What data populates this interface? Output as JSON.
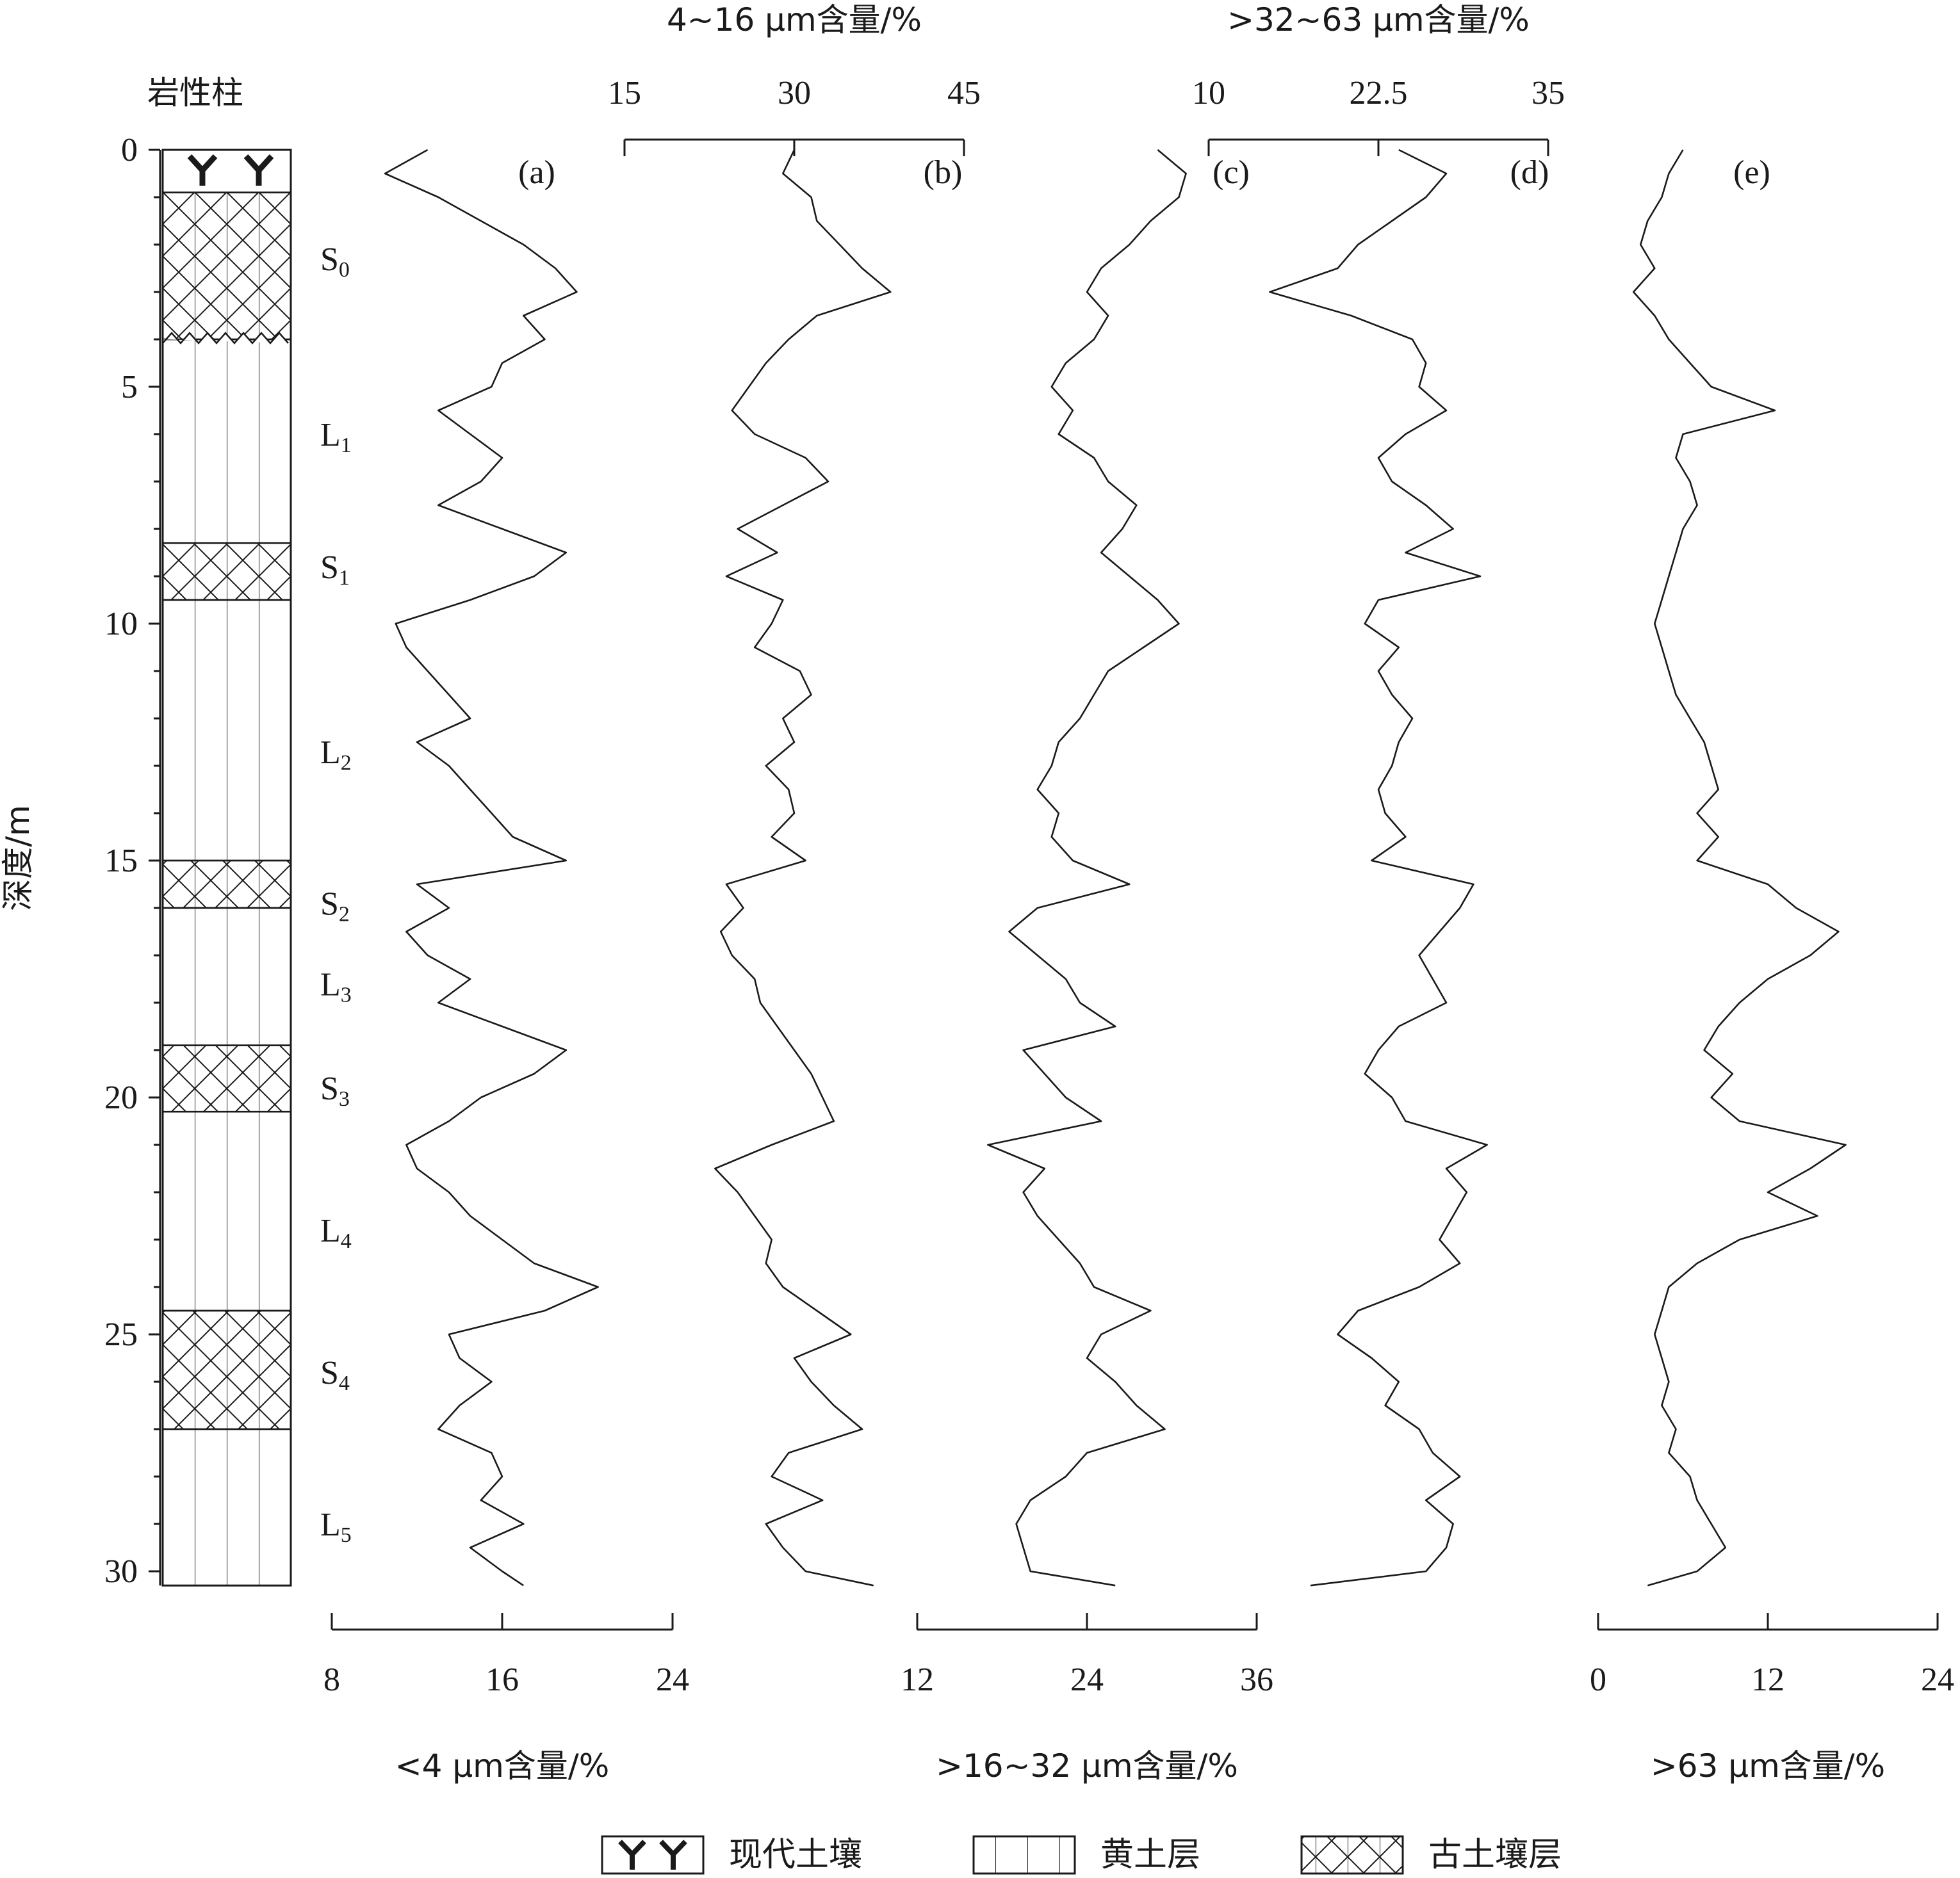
{
  "lithology": {
    "title": "岩性柱",
    "units": [
      {
        "label": "S",
        "sub": "0",
        "type": "soil_modern",
        "top": 0.0,
        "bottom": 0.9
      },
      {
        "label": "",
        "sub": "",
        "type": "paleosol",
        "top": 0.9,
        "bottom": 4.0
      },
      {
        "label": "L",
        "sub": "1",
        "type": "loess",
        "top": 4.0,
        "bottom": 8.3
      },
      {
        "label": "S",
        "sub": "1",
        "type": "paleosol",
        "top": 8.3,
        "bottom": 9.5
      },
      {
        "label": "L",
        "sub": "2",
        "type": "loess",
        "top": 9.5,
        "bottom": 15.0
      },
      {
        "label": "S",
        "sub": "2",
        "type": "paleosol",
        "top": 15.0,
        "bottom": 16.0
      },
      {
        "label": "L",
        "sub": "3",
        "type": "loess",
        "top": 16.0,
        "bottom": 18.9
      },
      {
        "label": "S",
        "sub": "3",
        "type": "paleosol",
        "top": 18.9,
        "bottom": 20.3
      },
      {
        "label": "L",
        "sub": "4",
        "type": "loess",
        "top": 20.3,
        "bottom": 24.5
      },
      {
        "label": "S",
        "sub": "4",
        "type": "paleosol",
        "top": 24.5,
        "bottom": 27.0
      },
      {
        "label": "L",
        "sub": "5",
        "type": "loess",
        "top": 27.0,
        "bottom": 30.3
      }
    ],
    "unit_label_depths": [
      2.3,
      6.0,
      8.8,
      12.7,
      15.9,
      17.6,
      19.8,
      22.8,
      25.8,
      29.0
    ]
  },
  "depth_axis": {
    "label": "深度/m",
    "range": [
      0,
      30.3
    ],
    "ticks": [
      0,
      5,
      10,
      15,
      20,
      25,
      30
    ],
    "tick_labels": [
      "0",
      "5",
      "10",
      "15",
      "20",
      "25",
      "30"
    ]
  },
  "legend": [
    {
      "type": "soil_modern",
      "label": "现代土壤"
    },
    {
      "type": "loess",
      "label": "黄土层"
    },
    {
      "type": "paleosol",
      "label": "古土壤层"
    }
  ],
  "chart_data": {
    "type": "line",
    "y_variable": "depth",
    "panels": [
      {
        "id": "a",
        "panel_label": "(a)",
        "axis_label": "<4 μm含量/%",
        "axis_position": "bottom",
        "xlim": [
          8,
          24
        ],
        "ticks": [
          8,
          16,
          24
        ],
        "tick_labels": [
          "8",
          "16",
          "24"
        ],
        "depth": [
          0.0,
          0.5,
          1.0,
          1.5,
          2.0,
          2.5,
          3.0,
          3.5,
          4.0,
          4.5,
          5.0,
          5.5,
          6.0,
          6.5,
          7.0,
          7.5,
          8.0,
          8.5,
          9.0,
          9.5,
          10.0,
          10.5,
          11.0,
          11.5,
          12.0,
          12.5,
          13.0,
          13.5,
          14.0,
          14.5,
          15.0,
          15.5,
          16.0,
          16.5,
          17.0,
          17.5,
          18.0,
          18.5,
          19.0,
          19.5,
          20.0,
          20.5,
          21.0,
          21.5,
          22.0,
          22.5,
          23.0,
          23.5,
          24.0,
          24.5,
          25.0,
          25.5,
          26.0,
          26.5,
          27.0,
          27.5,
          28.0,
          28.5,
          29.0,
          29.5,
          30.0,
          30.3
        ],
        "values": [
          12.5,
          10.5,
          13.0,
          15.0,
          17.0,
          18.5,
          19.5,
          17.0,
          18.0,
          16.0,
          15.5,
          13.0,
          14.5,
          16.0,
          15.0,
          13.0,
          16.0,
          19.0,
          17.5,
          14.5,
          11.0,
          11.5,
          12.5,
          13.5,
          14.5,
          12.0,
          13.5,
          14.5,
          15.5,
          16.5,
          19.0,
          12.0,
          13.5,
          11.5,
          12.5,
          14.5,
          13.0,
          16.0,
          19.0,
          17.5,
          15.0,
          13.5,
          11.5,
          12.0,
          13.5,
          14.5,
          16.0,
          17.5,
          20.5,
          18.0,
          13.5,
          14.0,
          15.5,
          14.0,
          13.0,
          15.5,
          16.0,
          15.0,
          17.0,
          14.5,
          16.0,
          17.0
        ]
      },
      {
        "id": "b",
        "panel_label": "(b)",
        "axis_label": "4~16 μm含量/%",
        "axis_position": "top",
        "xlim": [
          15,
          45
        ],
        "ticks": [
          15,
          30,
          45
        ],
        "tick_labels": [
          "15",
          "30",
          "45"
        ],
        "depth": [
          0.0,
          0.5,
          1.0,
          1.5,
          2.0,
          2.5,
          3.0,
          3.5,
          4.0,
          4.5,
          5.0,
          5.5,
          6.0,
          6.5,
          7.0,
          7.5,
          8.0,
          8.5,
          9.0,
          9.5,
          10.0,
          10.5,
          11.0,
          11.5,
          12.0,
          12.5,
          13.0,
          13.5,
          14.0,
          14.5,
          15.0,
          15.5,
          16.0,
          16.5,
          17.0,
          17.5,
          18.0,
          18.5,
          19.0,
          19.5,
          20.0,
          20.5,
          21.0,
          21.5,
          22.0,
          22.5,
          23.0,
          23.5,
          24.0,
          24.5,
          25.0,
          25.5,
          26.0,
          26.5,
          27.0,
          27.5,
          28.0,
          28.5,
          29.0,
          29.5,
          30.0,
          30.3
        ],
        "values": [
          30.0,
          29.0,
          31.5,
          32.0,
          34.0,
          36.0,
          38.5,
          32.0,
          29.5,
          27.5,
          26.0,
          24.5,
          26.5,
          31.0,
          33.0,
          29.0,
          25.0,
          28.5,
          24.0,
          29.0,
          28.0,
          26.5,
          30.5,
          31.5,
          29.0,
          30.0,
          27.5,
          29.5,
          30.0,
          28.0,
          31.0,
          24.0,
          25.5,
          23.5,
          24.5,
          26.5,
          27.0,
          28.5,
          30.0,
          31.5,
          32.5,
          33.5,
          28.0,
          23.0,
          25.0,
          26.5,
          28.0,
          27.5,
          29.0,
          32.0,
          35.0,
          30.0,
          31.5,
          33.5,
          36.0,
          29.5,
          28.0,
          32.5,
          27.5,
          29.0,
          31.0,
          37.0
        ]
      },
      {
        "id": "c",
        "panel_label": "(c)",
        "axis_label": ">16~32 μm含量/%",
        "axis_position": "bottom",
        "xlim": [
          12,
          36
        ],
        "ticks": [
          12,
          24,
          36
        ],
        "tick_labels": [
          "12",
          "24",
          "36"
        ],
        "depth": [
          0.0,
          0.5,
          1.0,
          1.5,
          2.0,
          2.5,
          3.0,
          3.5,
          4.0,
          4.5,
          5.0,
          5.5,
          6.0,
          6.5,
          7.0,
          7.5,
          8.0,
          8.5,
          9.0,
          9.5,
          10.0,
          10.5,
          11.0,
          11.5,
          12.0,
          12.5,
          13.0,
          13.5,
          14.0,
          14.5,
          15.0,
          15.5,
          16.0,
          16.5,
          17.0,
          17.5,
          18.0,
          18.5,
          19.0,
          19.5,
          20.0,
          20.5,
          21.0,
          21.5,
          22.0,
          22.5,
          23.0,
          23.5,
          24.0,
          24.5,
          25.0,
          25.5,
          26.0,
          26.5,
          27.0,
          27.5,
          28.0,
          28.5,
          29.0,
          29.5,
          30.0,
          30.3
        ],
        "values": [
          29.0,
          31.0,
          30.5,
          28.5,
          27.0,
          25.0,
          24.0,
          25.5,
          24.5,
          22.5,
          21.5,
          23.0,
          22.0,
          24.5,
          25.5,
          27.5,
          26.5,
          25.0,
          27.0,
          29.0,
          30.5,
          28.0,
          25.5,
          24.5,
          23.5,
          22.0,
          21.5,
          20.5,
          22.0,
          21.5,
          23.0,
          27.0,
          20.5,
          18.5,
          20.5,
          22.5,
          23.5,
          26.0,
          19.5,
          21.0,
          22.5,
          25.0,
          17.0,
          21.0,
          19.5,
          20.5,
          22.0,
          23.5,
          24.5,
          28.5,
          25.0,
          24.0,
          26.0,
          27.5,
          29.5,
          24.0,
          22.5,
          20.0,
          19.0,
          19.5,
          20.0,
          26.0
        ]
      },
      {
        "id": "d",
        "panel_label": "(d)",
        "axis_label": ">32~63 μm含量/%",
        "axis_position": "top",
        "xlim": [
          10,
          35
        ],
        "ticks": [
          10,
          22.5,
          35
        ],
        "tick_labels": [
          "10",
          "22.5",
          "35"
        ],
        "depth": [
          0.0,
          0.5,
          1.0,
          1.5,
          2.0,
          2.5,
          3.0,
          3.5,
          4.0,
          4.5,
          5.0,
          5.5,
          6.0,
          6.5,
          7.0,
          7.5,
          8.0,
          8.5,
          9.0,
          9.5,
          10.0,
          10.5,
          11.0,
          11.5,
          12.0,
          12.5,
          13.0,
          13.5,
          14.0,
          14.5,
          15.0,
          15.5,
          16.0,
          16.5,
          17.0,
          17.5,
          18.0,
          18.5,
          19.0,
          19.5,
          20.0,
          20.5,
          21.0,
          21.5,
          22.0,
          22.5,
          23.0,
          23.5,
          24.0,
          24.5,
          25.0,
          25.5,
          26.0,
          26.5,
          27.0,
          27.5,
          28.0,
          28.5,
          29.0,
          29.5,
          30.0,
          30.3
        ],
        "values": [
          24.0,
          27.5,
          26.0,
          23.5,
          21.0,
          19.5,
          14.5,
          20.5,
          25.0,
          26.0,
          25.5,
          27.5,
          24.5,
          22.5,
          23.5,
          26.0,
          28.0,
          24.5,
          30.0,
          22.5,
          21.5,
          24.0,
          22.5,
          23.5,
          25.0,
          24.0,
          23.5,
          22.5,
          23.0,
          24.5,
          22.0,
          29.5,
          28.5,
          27.0,
          25.5,
          26.5,
          27.5,
          24.0,
          22.5,
          21.5,
          23.5,
          24.5,
          30.5,
          27.5,
          29.0,
          28.0,
          27.0,
          28.5,
          25.5,
          21.0,
          19.5,
          22.0,
          24.0,
          23.0,
          25.5,
          26.5,
          28.5,
          26.0,
          28.0,
          27.5,
          26.0,
          17.5
        ]
      },
      {
        "id": "e",
        "panel_label": "(e)",
        "axis_label": ">63 μm含量/%",
        "axis_position": "bottom",
        "xlim": [
          0,
          24
        ],
        "ticks": [
          0,
          12,
          24
        ],
        "tick_labels": [
          "0",
          "12",
          "24"
        ],
        "depth": [
          0.0,
          0.5,
          1.0,
          1.5,
          2.0,
          2.5,
          3.0,
          3.5,
          4.0,
          4.5,
          5.0,
          5.5,
          6.0,
          6.5,
          7.0,
          7.5,
          8.0,
          8.5,
          9.0,
          9.5,
          10.0,
          10.5,
          11.0,
          11.5,
          12.0,
          12.5,
          13.0,
          13.5,
          14.0,
          14.5,
          15.0,
          15.5,
          16.0,
          16.5,
          17.0,
          17.5,
          18.0,
          18.5,
          19.0,
          19.5,
          20.0,
          20.5,
          21.0,
          21.5,
          22.0,
          22.5,
          23.0,
          23.5,
          24.0,
          24.5,
          25.0,
          25.5,
          26.0,
          26.5,
          27.0,
          27.5,
          28.0,
          28.5,
          29.0,
          29.5,
          30.0,
          30.3
        ],
        "values": [
          6.0,
          5.0,
          4.5,
          3.5,
          3.0,
          4.0,
          2.5,
          4.0,
          5.0,
          6.5,
          8.0,
          12.5,
          6.0,
          5.5,
          6.5,
          7.0,
          6.0,
          5.5,
          5.0,
          4.5,
          4.0,
          4.5,
          5.0,
          5.5,
          6.5,
          7.5,
          8.0,
          8.5,
          7.0,
          8.5,
          7.0,
          12.0,
          14.0,
          17.0,
          15.0,
          12.0,
          10.0,
          8.5,
          7.5,
          9.5,
          8.0,
          10.0,
          17.5,
          15.0,
          12.0,
          15.5,
          10.0,
          7.0,
          5.0,
          4.5,
          4.0,
          4.5,
          5.0,
          4.5,
          5.5,
          5.0,
          6.5,
          7.0,
          8.0,
          9.0,
          7.0,
          3.5
        ]
      }
    ]
  }
}
